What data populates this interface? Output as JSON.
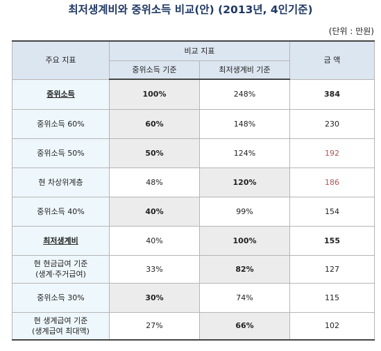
{
  "title": "최저생계비와 중위소득 비교(안) (2013년, 4인기준)",
  "unit": "(단위 : 만원)",
  "table": {
    "header": {
      "indicator": "주요 지표",
      "compare": "비교 지표",
      "amount": "금  액",
      "median_basis": "중위소득 기준",
      "minimum_basis": "최저생계비 기준"
    },
    "rows": [
      {
        "label": "중위소득",
        "median": "100%",
        "minimum": "248%",
        "amount": "384"
      },
      {
        "label": "중위소득 60%",
        "median": "60%",
        "minimum": "148%",
        "amount": "230"
      },
      {
        "label": "중위소득 50%",
        "median": "50%",
        "minimum": "124%",
        "amount": "192"
      },
      {
        "label": "현 차상위계층",
        "median": "48%",
        "minimum": "120%",
        "amount": "186"
      },
      {
        "label": "중위소득 40%",
        "median": "40%",
        "minimum": "99%",
        "amount": "154"
      },
      {
        "label": "최저생계비",
        "median": "40%",
        "minimum": "100%",
        "amount": "155"
      },
      {
        "label": "현 현금급여 기준",
        "label2": "(생계·주거급여)",
        "median": "33%",
        "minimum": "82%",
        "amount": "127"
      },
      {
        "label": "중위소득 30%",
        "median": "30%",
        "minimum": "74%",
        "amount": "115"
      },
      {
        "label": "현 생계급여 기준",
        "label2": "(생계급여 최대액)",
        "median": "27%",
        "minimum": "66%",
        "amount": "102"
      }
    ]
  },
  "colors": {
    "header_bg": "#dce6f1",
    "label_bg": "#eef7fb",
    "highlight_bg": "#ececec",
    "red_text": "#b0504f",
    "title": "#1f3864"
  }
}
